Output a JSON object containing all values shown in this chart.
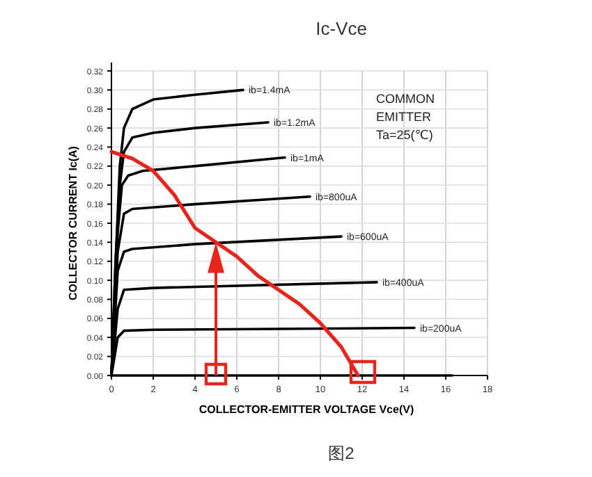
{
  "chart_data": {
    "type": "line",
    "title": "Ic-Vce",
    "xlabel": "COLLECTOR-EMITTER VOLTAGE Vce(V)",
    "ylabel": "COLLECTOR CURRENT Ic(A)",
    "xlim": [
      0,
      18
    ],
    "xticks": [
      0,
      2,
      4,
      6,
      8,
      10,
      12,
      14,
      16,
      18
    ],
    "ylim": [
      0,
      0.32
    ],
    "yticks": [
      {
        "value": 0,
        "label": "0.00"
      },
      {
        "value": 0.02,
        "label": "0.02"
      },
      {
        "value": 0.04,
        "label": "0.04"
      },
      {
        "value": 0.06,
        "label": "0.06"
      },
      {
        "value": 0.08,
        "label": "0.08"
      },
      {
        "value": 0.1,
        "label": "0.10"
      },
      {
        "value": 0.12,
        "label": "0.12"
      },
      {
        "value": 0.14,
        "label": "0.14"
      },
      {
        "value": 0.16,
        "label": "0.16"
      },
      {
        "value": 0.18,
        "label": "0.18"
      },
      {
        "value": 0.2,
        "label": "0.20"
      },
      {
        "value": 0.22,
        "label": "0.22"
      },
      {
        "value": 0.24,
        "label": "0.24"
      },
      {
        "value": 0.26,
        "label": "0.26"
      },
      {
        "value": 0.28,
        "label": "0.28"
      },
      {
        "value": 0.3,
        "label": "0.30"
      },
      {
        "value": 0.32,
        "label": "0.32"
      }
    ],
    "grid": true,
    "marker": "none",
    "line_style": "solid",
    "series": [
      {
        "name": "ib=1.4mA",
        "color": "#000000",
        "x": [
          0,
          0.2,
          0.4,
          0.6,
          1,
          2,
          4,
          6.3
        ],
        "values": [
          0,
          0.12,
          0.22,
          0.26,
          0.28,
          0.29,
          0.295,
          0.3
        ]
      },
      {
        "name": "ib=1.2mA",
        "color": "#000000",
        "x": [
          0,
          0.2,
          0.4,
          0.6,
          1,
          2,
          4,
          7.5
        ],
        "values": [
          0,
          0.12,
          0.2,
          0.235,
          0.25,
          0.255,
          0.26,
          0.266
        ]
      },
      {
        "name": "ib=1mA",
        "color": "#000000",
        "x": [
          0,
          0.3,
          0.5,
          0.8,
          1.5,
          4,
          8.3
        ],
        "values": [
          0,
          0.15,
          0.2,
          0.21,
          0.215,
          0.22,
          0.229
        ]
      },
      {
        "name": "ib=800uA",
        "color": "#000000",
        "x": [
          0,
          0.3,
          0.6,
          1,
          4,
          9.5
        ],
        "values": [
          0,
          0.13,
          0.17,
          0.175,
          0.18,
          0.188
        ]
      },
      {
        "name": "ib=600uA",
        "color": "#000000",
        "x": [
          0,
          0.3,
          0.6,
          1,
          4,
          11
        ],
        "values": [
          0,
          0.11,
          0.13,
          0.133,
          0.138,
          0.146
        ]
      },
      {
        "name": "ib=400uA",
        "color": "#000000",
        "x": [
          0,
          0.3,
          0.6,
          2,
          12.7
        ],
        "values": [
          0,
          0.07,
          0.09,
          0.092,
          0.098
        ]
      },
      {
        "name": "ib=200uA",
        "color": "#000000",
        "x": [
          0,
          0.3,
          0.6,
          2,
          14.5
        ],
        "values": [
          0,
          0.04,
          0.047,
          0.048,
          0.05
        ]
      },
      {
        "color": "#000000",
        "x": [
          0,
          16.3
        ],
        "values": [
          0,
          0
        ]
      },
      {
        "color": "#e8251c",
        "x": [
          0,
          1,
          2,
          3,
          4,
          5,
          6,
          7,
          8,
          9,
          10,
          11,
          11.8
        ],
        "values": [
          0.235,
          0.228,
          0.215,
          0.19,
          0.155,
          0.14,
          0.125,
          0.105,
          0.09,
          0.075,
          0.055,
          0.03,
          0
        ]
      }
    ],
    "annotations": [
      "COMMON",
      "EMITTER",
      "Ta=25(℃)",
      "图2"
    ]
  }
}
